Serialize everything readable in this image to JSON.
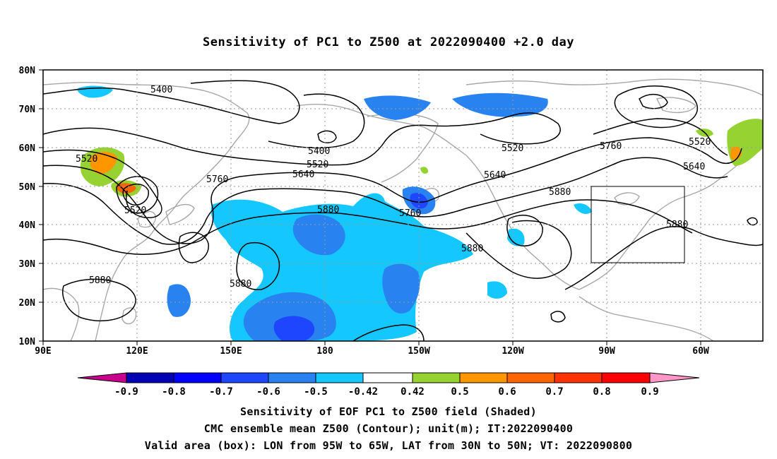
{
  "title": "Sensitivity of PC1 to Z500 at 2022090400 +2.0 day",
  "map": {
    "lat_labels": [
      "80N",
      "70N",
      "60N",
      "50N",
      "40N",
      "30N",
      "20N",
      "10N"
    ],
    "lon_labels": [
      "90E",
      "120E",
      "150E",
      "180",
      "150W",
      "120W",
      "90W",
      "60W"
    ],
    "contour_labels": [
      "5400",
      "5400",
      "5520",
      "5520",
      "5520",
      "5520",
      "5520",
      "5640",
      "5640",
      "5640",
      "5760",
      "5760",
      "5760",
      "5880",
      "5880",
      "5880",
      "5880",
      "5880",
      "5880"
    ],
    "valid_box": {
      "lon_min": "95W",
      "lon_max": "65W",
      "lat_min": "30N",
      "lat_max": "50N"
    },
    "shading_colors": {
      "neg_tail": "#c8008c",
      "neg": [
        "#0000b4",
        "#0000ff",
        "#1e46ff",
        "#2882f0",
        "#14c8ff"
      ],
      "neutral": "#ffffff",
      "pos": [
        "#96d232",
        "#ff9600",
        "#ff6400",
        "#ff3200",
        "#ff0000"
      ],
      "pos_tail": "#ff96c8"
    }
  },
  "colorbar": {
    "ticks": [
      "-0.9",
      "-0.8",
      "-0.7",
      "-0.6",
      "-0.5",
      "-0.42",
      "0.42",
      "0.5",
      "0.6",
      "0.7",
      "0.8",
      "0.9"
    ]
  },
  "captions": {
    "line1": "Sensitivity of EOF PC1 to Z500 field (Shaded)",
    "line2": "CMC ensemble mean Z500 (Contour); unit(m); IT:2022090400",
    "line3": "Valid area (box): LON from 95W to 65W, LAT from 30N to 50N; VT: 2022090800"
  }
}
